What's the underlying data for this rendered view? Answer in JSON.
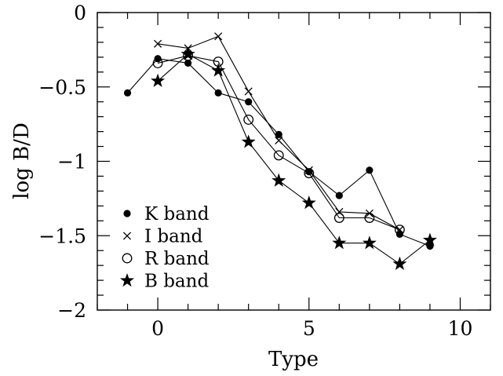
{
  "chart_data": {
    "type": "line",
    "xlabel": "Type",
    "ylabel": "log B/D",
    "xlim": [
      -2,
      11
    ],
    "ylim": [
      -2,
      0
    ],
    "xticks": [
      0,
      5,
      10
    ],
    "yticks": [
      0,
      -0.5,
      -1,
      -1.5,
      -2
    ],
    "xtick_labels": [
      "0",
      "5",
      "10"
    ],
    "ytick_labels": [
      "0",
      "−0.5",
      "−1",
      "−1.5",
      "−2"
    ],
    "grid": false,
    "legend_position": "bottom-left",
    "series": [
      {
        "name": "K band",
        "marker": "filled-circle",
        "x": [
          -1,
          0,
          1,
          2,
          3,
          4,
          5,
          6,
          7,
          8,
          9
        ],
        "y": [
          -0.54,
          -0.31,
          -0.34,
          -0.54,
          -0.6,
          -0.82,
          -1.07,
          -1.23,
          -1.06,
          -1.49,
          -1.57
        ]
      },
      {
        "name": "I band",
        "marker": "cross",
        "x": [
          0,
          1,
          2,
          3,
          4,
          5,
          6,
          7,
          8
        ],
        "y": [
          -0.21,
          -0.24,
          -0.16,
          -0.53,
          -0.86,
          -1.06,
          -1.34,
          -1.35,
          -1.46
        ]
      },
      {
        "name": "R band",
        "marker": "open-circle",
        "x": [
          0,
          1,
          2,
          3,
          4,
          5,
          6,
          7,
          8
        ],
        "y": [
          -0.34,
          -0.29,
          -0.33,
          -0.72,
          -0.96,
          -1.08,
          -1.38,
          -1.38,
          -1.46
        ]
      },
      {
        "name": "B band",
        "marker": "filled-star",
        "x": [
          0,
          1,
          2,
          3,
          4,
          5,
          6,
          7,
          8,
          9
        ],
        "y": [
          -0.46,
          -0.28,
          -0.39,
          -0.87,
          -1.13,
          -1.28,
          -1.55,
          -1.55,
          -1.69,
          -1.53
        ]
      }
    ]
  }
}
